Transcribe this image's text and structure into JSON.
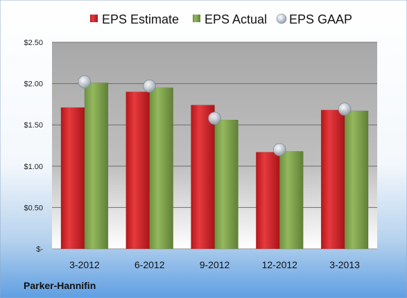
{
  "chart_data": {
    "type": "bar",
    "title": "",
    "xlabel": "",
    "ylabel": "",
    "categories": [
      "3-2012",
      "6-2012",
      "9-2012",
      "12-2012",
      "3-2013"
    ],
    "series": [
      {
        "name": "EPS Estimate",
        "type": "bar",
        "values": [
          1.71,
          1.9,
          1.74,
          1.17,
          1.68
        ],
        "color": "#CC1E22"
      },
      {
        "name": "EPS Actual",
        "type": "bar",
        "values": [
          2.01,
          1.95,
          1.56,
          1.18,
          1.67
        ],
        "color": "#7FA24A"
      },
      {
        "name": "EPS GAAP",
        "type": "marker",
        "values": [
          2.02,
          1.97,
          1.58,
          1.2,
          1.69
        ],
        "color": "#B8C4CE"
      }
    ],
    "ylim": [
      0,
      2.5
    ],
    "yticks": [
      0,
      0.5,
      1.0,
      1.5,
      2.0,
      2.5
    ],
    "ytick_labels": [
      "$-",
      "$0.50",
      "$1.00",
      "$1.50",
      "$2.00",
      "$2.50"
    ],
    "grid": true,
    "legend": "top"
  },
  "footer": {
    "company": "Parker-Hannifin"
  }
}
